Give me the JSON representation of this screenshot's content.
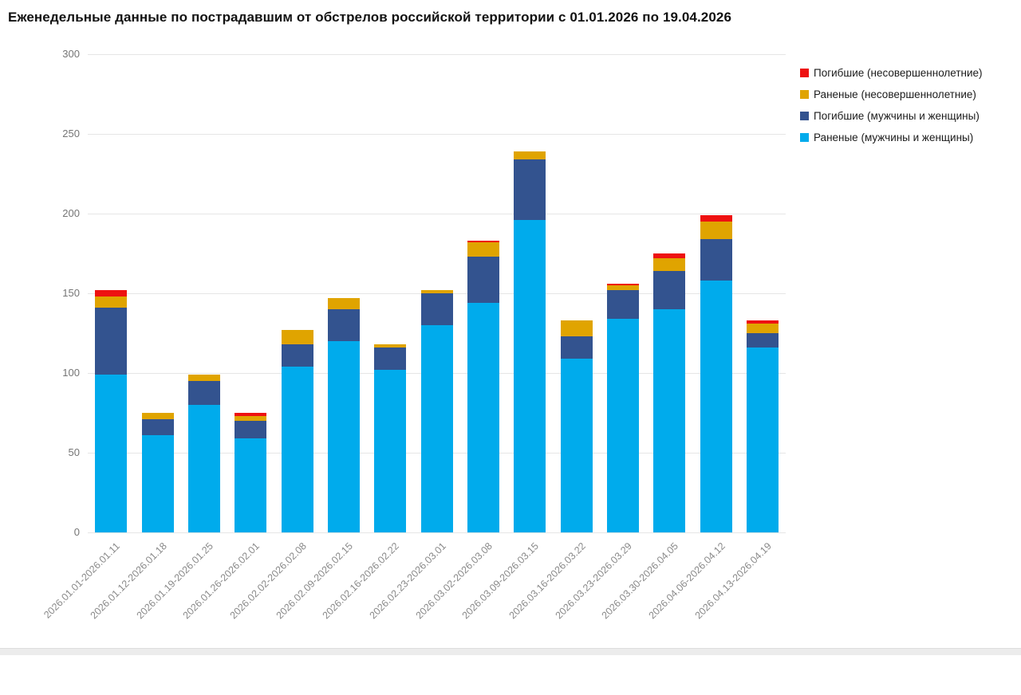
{
  "title": "Еженедельные данные по пострадавшим от обстрелов российской территории с 01.01.2026 по 19.04.2026",
  "colors": {
    "dead_minors": "#ee1111",
    "wounded_minors": "#e0a400",
    "dead_adults": "#33538f",
    "wounded_adults": "#00abec",
    "grid": "#e6e6e6",
    "tick_text": "#757575",
    "title_text": "#121212"
  },
  "legend": [
    {
      "label": "Погибшие (несовершеннолетние)",
      "color": "#ee1111"
    },
    {
      "label": "Раненые (несовершеннолетние)",
      "color": "#e0a400"
    },
    {
      "label": "Погибшие (мужчины и женщины)",
      "color": "#33538f"
    },
    {
      "label": "Раненые (мужчины и женщины)",
      "color": "#00abec"
    }
  ],
  "chart_data": {
    "type": "bar",
    "stacked": true,
    "title": "Еженедельные данные по пострадавшим от обстрелов российской территории с 01.01.2026 по 19.04.2026",
    "xlabel": "",
    "ylabel": "",
    "ylim": [
      0,
      300
    ],
    "yticks": [
      0,
      50,
      100,
      150,
      200,
      250,
      300
    ],
    "grid": true,
    "legend_position": "top-right",
    "categories": [
      "2026.01.01-2026.01.11",
      "2026.01.12-2026.01.18",
      "2026.01.19-2026.01.25",
      "2026.01.26-2026.02.01",
      "2026.02.02-2026.02.08",
      "2026.02.09-2026.02.15",
      "2026.02.16-2026.02.22",
      "2026.02.23-2026.03.01",
      "2026.03.02-2026.03.08",
      "2026.03.09-2026.03.15",
      "2026.03.16-2026.03.22",
      "2026.03.23-2026.03.29",
      "2026.03.30-2026.04.05",
      "2026.04.06-2026.04.12",
      "2026.04.13-2026.04.19"
    ],
    "series": [
      {
        "name": "Раненые (мужчины и женщины)",
        "color": "#00abec",
        "values": [
          99,
          61,
          80,
          59,
          104,
          120,
          102,
          130,
          144,
          196,
          109,
          134,
          140,
          158,
          116
        ]
      },
      {
        "name": "Погибшие (мужчины и женщины)",
        "color": "#33538f",
        "values": [
          42,
          10,
          15,
          11,
          14,
          20,
          14,
          20,
          29,
          38,
          14,
          18,
          24,
          26,
          9
        ]
      },
      {
        "name": "Раненые (несовершеннолетние)",
        "color": "#e0a400",
        "values": [
          7,
          4,
          4,
          3,
          9,
          7,
          2,
          2,
          9,
          5,
          10,
          3,
          8,
          11,
          6
        ]
      },
      {
        "name": "Погибшие (несовершеннолетние)",
        "color": "#ee1111",
        "values": [
          4,
          0,
          0,
          2,
          0,
          0,
          0,
          0,
          1,
          0,
          0,
          1,
          3,
          4,
          2
        ]
      }
    ],
    "totals": [
      152,
      75,
      99,
      75,
      127,
      147,
      118,
      152,
      183,
      239,
      133,
      156,
      175,
      199,
      133
    ]
  }
}
